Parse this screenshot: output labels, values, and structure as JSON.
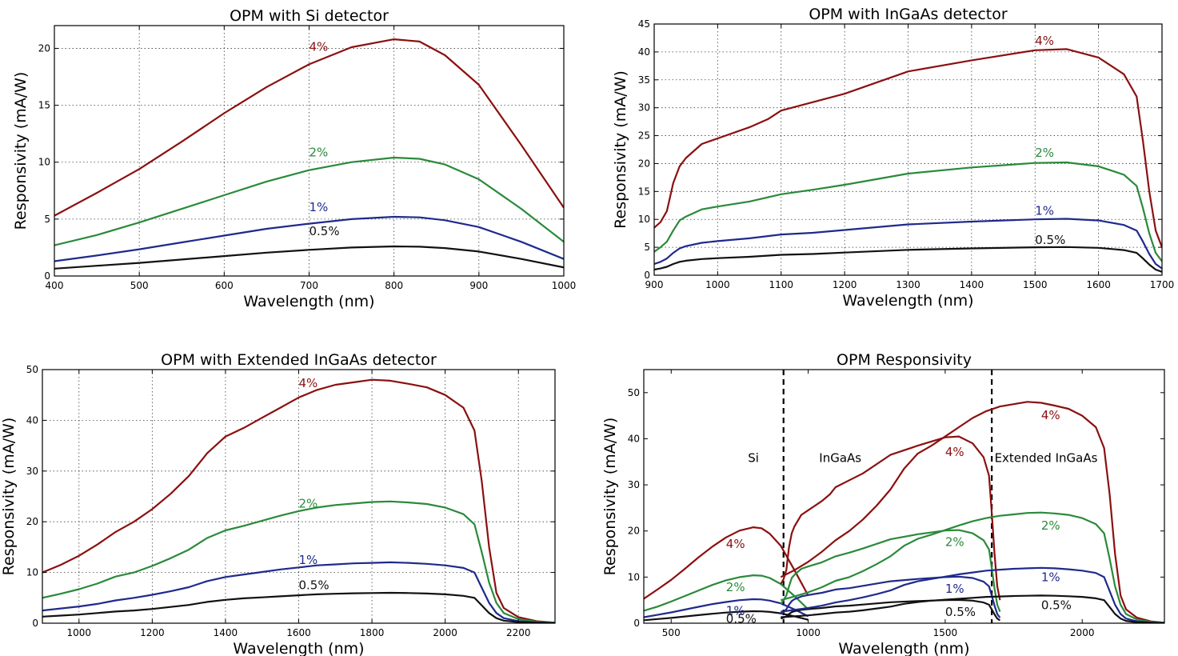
{
  "colors": {
    "p4": "#8b1010",
    "p2": "#2a8a3a",
    "p1": "#1f2a8c",
    "p05": "#111111"
  },
  "chart_data": [
    {
      "type": "line",
      "title": "OPM with Si detector",
      "xlabel": "Wavelength (nm)",
      "ylabel": "Responsivity (mA/W)",
      "xlim": [
        400,
        1000
      ],
      "ylim": [
        0,
        22
      ],
      "xticks": [
        400,
        500,
        600,
        700,
        800,
        900,
        1000
      ],
      "yticks": [
        0,
        5,
        10,
        15,
        20
      ],
      "grid": true,
      "series": [
        {
          "name": "4%",
          "color": "p4",
          "label_at": [
            700,
            19.8
          ],
          "x": [
            400,
            450,
            500,
            550,
            600,
            650,
            700,
            750,
            800,
            830,
            860,
            900,
            950,
            1000
          ],
          "y": [
            5.3,
            7.3,
            9.4,
            11.8,
            14.3,
            16.6,
            18.6,
            20.1,
            20.8,
            20.6,
            19.4,
            16.8,
            11.5,
            6.0
          ]
        },
        {
          "name": "2%",
          "color": "p2",
          "label_at": [
            700,
            10.5
          ],
          "x": [
            400,
            450,
            500,
            550,
            600,
            650,
            700,
            750,
            800,
            830,
            860,
            900,
            950,
            1000
          ],
          "y": [
            2.7,
            3.6,
            4.7,
            5.9,
            7.1,
            8.3,
            9.3,
            10.0,
            10.4,
            10.3,
            9.8,
            8.5,
            5.9,
            3.0
          ]
        },
        {
          "name": "1%",
          "color": "p1",
          "label_at": [
            700,
            5.7
          ],
          "x": [
            400,
            450,
            500,
            550,
            600,
            650,
            700,
            750,
            800,
            830,
            860,
            900,
            950,
            1000
          ],
          "y": [
            1.3,
            1.8,
            2.35,
            2.95,
            3.55,
            4.15,
            4.6,
            5.0,
            5.2,
            5.15,
            4.9,
            4.3,
            3.0,
            1.5
          ]
        },
        {
          "name": "0.5%",
          "color": "p05",
          "label_at": [
            700,
            3.6
          ],
          "x": [
            400,
            450,
            500,
            550,
            600,
            650,
            700,
            750,
            800,
            830,
            860,
            900,
            950,
            1000
          ],
          "y": [
            0.65,
            0.9,
            1.15,
            1.45,
            1.75,
            2.05,
            2.3,
            2.5,
            2.6,
            2.57,
            2.45,
            2.15,
            1.5,
            0.75
          ]
        }
      ]
    },
    {
      "type": "line",
      "title": "OPM with InGaAs detector",
      "xlabel": "Wavelength (nm)",
      "ylabel": "Responsivity (mA/W)",
      "xlim": [
        900,
        1700
      ],
      "ylim": [
        0,
        45
      ],
      "xticks": [
        900,
        1000,
        1100,
        1200,
        1300,
        1400,
        1500,
        1600,
        1700
      ],
      "yticks": [
        0,
        5,
        10,
        15,
        20,
        25,
        30,
        35,
        40,
        45
      ],
      "grid": true,
      "series": [
        {
          "name": "4%",
          "color": "p4",
          "label_at": [
            1500,
            41.3
          ],
          "x": [
            900,
            910,
            920,
            930,
            940,
            950,
            975,
            1000,
            1050,
            1080,
            1100,
            1150,
            1200,
            1300,
            1400,
            1500,
            1550,
            1600,
            1640,
            1660,
            1670,
            1680,
            1690,
            1700
          ],
          "y": [
            8.5,
            9.5,
            11.5,
            16.5,
            19.5,
            21.0,
            23.5,
            24.5,
            26.5,
            28.0,
            29.5,
            31.0,
            32.5,
            36.5,
            38.5,
            40.3,
            40.5,
            39.0,
            36.0,
            32.0,
            24.0,
            15.0,
            8.0,
            5.0
          ]
        },
        {
          "name": "2%",
          "color": "p2",
          "label_at": [
            1500,
            21.2
          ],
          "x": [
            900,
            910,
            920,
            930,
            940,
            950,
            975,
            1000,
            1050,
            1100,
            1150,
            1200,
            1300,
            1400,
            1500,
            1550,
            1600,
            1640,
            1660,
            1670,
            1680,
            1690,
            1700
          ],
          "y": [
            4.2,
            5.0,
            6.0,
            8.0,
            9.8,
            10.5,
            11.8,
            12.3,
            13.2,
            14.5,
            15.3,
            16.2,
            18.2,
            19.3,
            20.1,
            20.2,
            19.5,
            18.0,
            16.0,
            12.0,
            7.5,
            4.0,
            2.5
          ]
        },
        {
          "name": "1%",
          "color": "p1",
          "label_at": [
            1500,
            10.8
          ],
          "x": [
            900,
            910,
            920,
            930,
            940,
            950,
            975,
            1000,
            1050,
            1100,
            1150,
            1200,
            1300,
            1400,
            1500,
            1550,
            1600,
            1640,
            1660,
            1670,
            1680,
            1690,
            1700
          ],
          "y": [
            2.0,
            2.4,
            3.0,
            4.0,
            4.8,
            5.2,
            5.8,
            6.1,
            6.6,
            7.3,
            7.6,
            8.1,
            9.1,
            9.6,
            10.0,
            10.1,
            9.8,
            9.0,
            8.0,
            6.0,
            3.8,
            2.0,
            1.2
          ]
        },
        {
          "name": "0.5%",
          "color": "p05",
          "label_at": [
            1500,
            5.6
          ],
          "x": [
            900,
            910,
            920,
            930,
            940,
            950,
            975,
            1000,
            1050,
            1100,
            1150,
            1200,
            1300,
            1400,
            1500,
            1550,
            1600,
            1640,
            1660,
            1670,
            1680,
            1690,
            1700
          ],
          "y": [
            1.0,
            1.2,
            1.5,
            2.0,
            2.4,
            2.6,
            2.9,
            3.05,
            3.3,
            3.65,
            3.8,
            4.05,
            4.55,
            4.8,
            5.0,
            5.05,
            4.9,
            4.5,
            4.0,
            3.0,
            1.9,
            1.0,
            0.6
          ]
        }
      ]
    },
    {
      "type": "line",
      "title": "OPM with Extended InGaAs detector",
      "xlabel": "Wavelength (nm)",
      "ylabel": "Responsivity (mA/W)",
      "xlim": [
        900,
        2300
      ],
      "ylim": [
        0,
        50
      ],
      "xticks": [
        1000,
        1200,
        1400,
        1600,
        1800,
        2000,
        2200
      ],
      "yticks": [
        0,
        10,
        20,
        30,
        40,
        50
      ],
      "grid": true,
      "series": [
        {
          "name": "4%",
          "color": "p4",
          "label_at": [
            1600,
            46.5
          ],
          "x": [
            900,
            950,
            1000,
            1050,
            1100,
            1150,
            1200,
            1250,
            1300,
            1350,
            1400,
            1450,
            1500,
            1550,
            1600,
            1650,
            1700,
            1750,
            1800,
            1850,
            1900,
            1950,
            2000,
            2050,
            2080,
            2100,
            2120,
            2140,
            2160,
            2200,
            2250,
            2300
          ],
          "y": [
            10,
            11.5,
            13.3,
            15.5,
            18.0,
            20.0,
            22.5,
            25.5,
            29.0,
            33.5,
            36.8,
            38.5,
            40.5,
            42.5,
            44.5,
            46.0,
            47.0,
            47.5,
            48.0,
            47.8,
            47.2,
            46.5,
            45.0,
            42.5,
            38.0,
            28.0,
            15.0,
            6.0,
            3.0,
            1.2,
            0.4,
            0.1
          ]
        },
        {
          "name": "2%",
          "color": "p2",
          "label_at": [
            1600,
            22.8
          ],
          "x": [
            900,
            950,
            1000,
            1050,
            1100,
            1150,
            1200,
            1250,
            1300,
            1350,
            1400,
            1450,
            1500,
            1550,
            1600,
            1650,
            1700,
            1750,
            1800,
            1850,
            1900,
            1950,
            2000,
            2050,
            2080,
            2100,
            2120,
            2140,
            2160,
            2200,
            2250,
            2300
          ],
          "y": [
            5.0,
            5.8,
            6.7,
            7.8,
            9.2,
            10.0,
            11.3,
            12.8,
            14.5,
            16.8,
            18.3,
            19.2,
            20.2,
            21.2,
            22.1,
            22.8,
            23.3,
            23.6,
            23.9,
            24.0,
            23.8,
            23.5,
            22.8,
            21.5,
            19.5,
            14.0,
            8.0,
            4.0,
            2.0,
            0.8,
            0.3,
            0.1
          ]
        },
        {
          "name": "1%",
          "color": "p1",
          "label_at": [
            1600,
            11.7
          ],
          "x": [
            900,
            950,
            1000,
            1050,
            1100,
            1150,
            1200,
            1250,
            1300,
            1350,
            1400,
            1450,
            1500,
            1550,
            1600,
            1650,
            1700,
            1750,
            1800,
            1850,
            1900,
            1950,
            2000,
            2050,
            2080,
            2100,
            2120,
            2140,
            2160,
            2200,
            2250,
            2300
          ],
          "y": [
            2.5,
            2.9,
            3.3,
            3.8,
            4.5,
            5.0,
            5.6,
            6.3,
            7.1,
            8.3,
            9.1,
            9.6,
            10.1,
            10.6,
            11.0,
            11.4,
            11.6,
            11.8,
            11.9,
            12.0,
            11.9,
            11.7,
            11.4,
            10.9,
            10.0,
            7.0,
            4.0,
            2.0,
            1.0,
            0.4,
            0.15,
            0.05
          ]
        },
        {
          "name": "0.5%",
          "color": "p05",
          "label_at": [
            1600,
            6.7
          ],
          "x": [
            900,
            950,
            1000,
            1050,
            1100,
            1150,
            1200,
            1250,
            1300,
            1350,
            1400,
            1450,
            1500,
            1550,
            1600,
            1650,
            1700,
            1750,
            1800,
            1850,
            1900,
            1950,
            2000,
            2050,
            2080,
            2100,
            2120,
            2140,
            2160,
            2200,
            2250,
            2300
          ],
          "y": [
            1.3,
            1.5,
            1.7,
            2.0,
            2.3,
            2.5,
            2.8,
            3.2,
            3.6,
            4.2,
            4.6,
            4.9,
            5.1,
            5.3,
            5.5,
            5.7,
            5.8,
            5.9,
            5.95,
            6.0,
            5.95,
            5.85,
            5.7,
            5.4,
            5.0,
            3.5,
            2.0,
            1.0,
            0.5,
            0.2,
            0.08,
            0.03
          ]
        }
      ]
    },
    {
      "type": "line",
      "title": "OPM Responsivity",
      "xlabel": "Wavelength (nm)",
      "ylabel": "Responsivity (mA/W)",
      "xlim": [
        400,
        2300
      ],
      "ylim": [
        0,
        55
      ],
      "xticks": [
        500,
        1000,
        1500,
        2000
      ],
      "yticks": [
        0,
        10,
        20,
        30,
        40,
        50
      ],
      "grid": false,
      "vlines": [
        910,
        1670
      ],
      "region_labels": [
        {
          "text": "Si",
          "at": [
            780,
            35
          ]
        },
        {
          "text": "InGaAs",
          "at": [
            1040,
            35
          ]
        },
        {
          "text": "Extended InGaAs",
          "at": [
            1680,
            35
          ]
        }
      ],
      "series_labels": [
        {
          "text": "4%",
          "color": "p4",
          "at": [
            700,
            16.3
          ]
        },
        {
          "text": "2%",
          "color": "p2",
          "at": [
            700,
            6.9
          ]
        },
        {
          "text": "1%",
          "color": "p1",
          "at": [
            700,
            1.8
          ]
        },
        {
          "text": "0.5%",
          "color": "p05",
          "at": [
            700,
            0.1
          ]
        },
        {
          "text": "4%",
          "color": "p4",
          "at": [
            1500,
            36.3
          ]
        },
        {
          "text": "2%",
          "color": "p2",
          "at": [
            1500,
            16.7
          ]
        },
        {
          "text": "1%",
          "color": "p1",
          "at": [
            1500,
            6.6
          ]
        },
        {
          "text": "0.5%",
          "color": "p05",
          "at": [
            1500,
            1.6
          ]
        },
        {
          "text": "4%",
          "color": "p4",
          "at": [
            1850,
            44.2
          ]
        },
        {
          "text": "2%",
          "color": "p2",
          "at": [
            1850,
            20.3
          ]
        },
        {
          "text": "1%",
          "color": "p1",
          "at": [
            1850,
            9.1
          ]
        },
        {
          "text": "0.5%",
          "color": "p05",
          "at": [
            1850,
            3.0
          ]
        }
      ],
      "series_from_panels": [
        0,
        1,
        2
      ]
    }
  ]
}
